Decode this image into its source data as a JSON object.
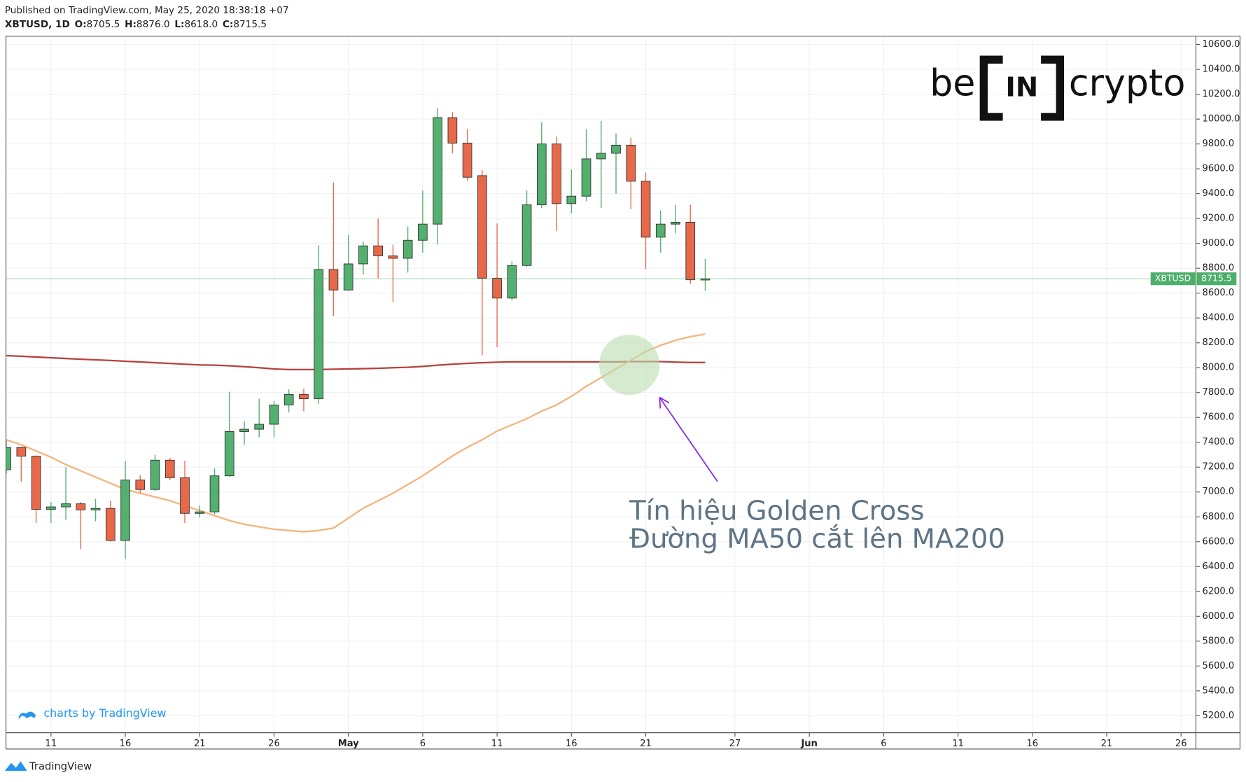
{
  "chart_data": {
    "type": "candlestick",
    "published": "Published on TradingView.com, May 25, 2020 18:38:18 +07",
    "header": {
      "title": "XBTUSD, 1D",
      "ohlc": [
        [
          "O:",
          "8705.5"
        ],
        [
          "H:",
          "8876.0"
        ],
        [
          "L:",
          "8618.0"
        ],
        [
          "C:",
          "8715.5"
        ]
      ]
    },
    "symbol": "XBTUSD",
    "logo": {
      "left": "be",
      "middle": "IN",
      "right": "crypto"
    },
    "annotation": [
      "Tín hiệu Golden Cross",
      "Đường MA50 cắt lên MA200"
    ],
    "watermark": "charts by TradingView",
    "footer": "TradingView",
    "up_color": "#53b06f",
    "down_color": "#e8694a",
    "price_line_color": "#4caf6a",
    "grid": true,
    "x": [
      "2020-04-08",
      "2020-04-09",
      "2020-04-10",
      "2020-04-11",
      "2020-04-12",
      "2020-04-13",
      "2020-04-14",
      "2020-04-15",
      "2020-04-16",
      "2020-04-17",
      "2020-04-18",
      "2020-04-19",
      "2020-04-20",
      "2020-04-21",
      "2020-04-22",
      "2020-04-23",
      "2020-04-24",
      "2020-04-25",
      "2020-04-26",
      "2020-04-27",
      "2020-04-28",
      "2020-04-29",
      "2020-04-30",
      "2020-05-01",
      "2020-05-02",
      "2020-05-03",
      "2020-05-04",
      "2020-05-05",
      "2020-05-06",
      "2020-05-07",
      "2020-05-08",
      "2020-05-09",
      "2020-05-10",
      "2020-05-11",
      "2020-05-12",
      "2020-05-13",
      "2020-05-14",
      "2020-05-15",
      "2020-05-16",
      "2020-05-17",
      "2020-05-18",
      "2020-05-19",
      "2020-05-20",
      "2020-05-21",
      "2020-05-22",
      "2020-05-23",
      "2020-05-24",
      "2020-05-25"
    ],
    "open": [
      7179,
      7358,
      7288,
      6860,
      6880,
      6905,
      6855,
      6868,
      6610,
      7096,
      7020,
      7256,
      7115,
      6828,
      6840,
      7130,
      7486,
      7505,
      7545,
      7700,
      7785,
      7750,
      8790,
      8625,
      8835,
      8980,
      8900,
      8880,
      9025,
      9155,
      10012,
      9807,
      9545,
      8720,
      8560,
      8822,
      9310,
      9800,
      9320,
      9380,
      9680,
      9725,
      9790,
      9500,
      9050,
      9155,
      9170,
      8705.5
    ],
    "high": [
      7422,
      7364,
      7294,
      6920,
      7200,
      6920,
      6945,
      6930,
      7250,
      7135,
      7300,
      7275,
      7250,
      6890,
      7190,
      7806,
      7570,
      7750,
      7730,
      7825,
      7830,
      8985,
      9490,
      9070,
      9015,
      9200,
      8990,
      9135,
      9425,
      10090,
      10055,
      9920,
      9590,
      9160,
      8855,
      9425,
      9975,
      9860,
      9595,
      9920,
      9985,
      9885,
      9850,
      9570,
      9265,
      9310,
      9310,
      8876
    ],
    "low": [
      7147,
      7083,
      6751,
      6750,
      6775,
      6540,
      6765,
      6600,
      6463,
      6990,
      7007,
      7095,
      6750,
      6795,
      6820,
      7122,
      7380,
      7440,
      7440,
      7640,
      7650,
      7710,
      8415,
      8620,
      8750,
      8720,
      8530,
      8765,
      8925,
      8990,
      9725,
      9505,
      8100,
      8165,
      8540,
      8810,
      9285,
      9100,
      9245,
      9340,
      9285,
      9400,
      9275,
      8795,
      8925,
      9080,
      8675,
      8618
    ],
    "close": [
      7358,
      7288,
      6860,
      6880,
      6905,
      6855,
      6868,
      6610,
      7096,
      7020,
      7256,
      7115,
      6828,
      6840,
      7130,
      7486,
      7505,
      7545,
      7700,
      7785,
      7750,
      8790,
      8625,
      8835,
      8980,
      8900,
      8880,
      9025,
      9155,
      10012,
      9807,
      9532,
      8720,
      8560,
      8822,
      9310,
      9800,
      9320,
      9380,
      9680,
      9725,
      9790,
      9500,
      9050,
      9155,
      9170,
      8707,
      8715.5
    ],
    "series": [
      {
        "color": "#b5423d",
        "values": [
          8097,
          8092,
          8086,
          8080,
          8074,
          8068,
          8063,
          8058,
          8052,
          8046,
          8040,
          8034,
          8028,
          8022,
          8020,
          8015,
          8008,
          8000,
          7990,
          7985,
          7985,
          7985,
          7988,
          7990,
          7992,
          7995,
          8000,
          8003,
          8010,
          8020,
          8028,
          8035,
          8040,
          8044,
          8047,
          8047,
          8047,
          8047,
          8047,
          8047,
          8047,
          8047,
          8049,
          8049,
          8049,
          8045,
          8042,
          8042
        ]
      },
      {
        "color": "#f4b47a",
        "values": [
          7420,
          7380,
          7330,
          7280,
          7220,
          7170,
          7120,
          7070,
          7020,
          6990,
          6960,
          6930,
          6890,
          6850,
          6810,
          6770,
          6740,
          6720,
          6700,
          6690,
          6680,
          6690,
          6710,
          6790,
          6870,
          6930,
          6990,
          7060,
          7130,
          7210,
          7290,
          7360,
          7420,
          7490,
          7540,
          7590,
          7650,
          7700,
          7770,
          7850,
          7920,
          7990,
          8060,
          8130,
          8180,
          8220,
          8250,
          8270
        ]
      }
    ],
    "xlim": [
      "2020-04-08",
      "2020-06-27"
    ],
    "xticks": [
      {
        "value": "2020-04-11",
        "label": "11"
      },
      {
        "value": "2020-04-16",
        "label": "16"
      },
      {
        "value": "2020-04-21",
        "label": "21"
      },
      {
        "value": "2020-04-26",
        "label": "26"
      },
      {
        "value": "2020-05-01",
        "label": "May"
      },
      {
        "value": "2020-05-06",
        "label": "6"
      },
      {
        "value": "2020-05-11",
        "label": "11"
      },
      {
        "value": "2020-05-16",
        "label": "16"
      },
      {
        "value": "2020-05-21",
        "label": "21"
      },
      {
        "value": "2020-05-27",
        "label": "27"
      },
      {
        "value": "2020-06-01",
        "label": "Jun"
      },
      {
        "value": "2020-06-06",
        "label": "6"
      },
      {
        "value": "2020-06-11",
        "label": "11"
      },
      {
        "value": "2020-06-16",
        "label": "16"
      },
      {
        "value": "2020-06-21",
        "label": "21"
      },
      {
        "value": "2020-06-26",
        "label": "26"
      }
    ],
    "ylim": [
      5076,
      10664
    ],
    "yticks": [
      {
        "value": 5200,
        "label": "5200.0"
      },
      {
        "value": 5400,
        "label": "5400.0"
      },
      {
        "value": 5600,
        "label": "5600.0"
      },
      {
        "value": 5800,
        "label": "5800.0"
      },
      {
        "value": 6000,
        "label": "6000.0"
      },
      {
        "value": 6200,
        "label": "6200.0"
      },
      {
        "value": 6400,
        "label": "6400.0"
      },
      {
        "value": 6600,
        "label": "6600.0"
      },
      {
        "value": 6800,
        "label": "6800.0"
      },
      {
        "value": 7000,
        "label": "7000.0"
      },
      {
        "value": 7200,
        "label": "7200.0"
      },
      {
        "value": 7400,
        "label": "7400.0"
      },
      {
        "value": 7600,
        "label": "7600.0"
      },
      {
        "value": 7800,
        "label": "7800.0"
      },
      {
        "value": 8000,
        "label": "8000.0"
      },
      {
        "value": 8200,
        "label": "8200.0"
      },
      {
        "value": 8400,
        "label": "8400.0"
      },
      {
        "value": 8600,
        "label": "8600.0"
      },
      {
        "value": 8800,
        "label": "8800.0"
      },
      {
        "value": 9000,
        "label": "9000.0"
      },
      {
        "value": 9200,
        "label": "9200.0"
      },
      {
        "value": 9400,
        "label": "9400.0"
      },
      {
        "value": 9600,
        "label": "9600.0"
      },
      {
        "value": 9800,
        "label": "9800.0"
      },
      {
        "value": 10000,
        "label": "10000.0"
      },
      {
        "value": 10200,
        "label": "10200.0"
      },
      {
        "value": 10400,
        "label": "10400.0"
      },
      {
        "value": 10600,
        "label": "10600.0"
      }
    ]
  }
}
